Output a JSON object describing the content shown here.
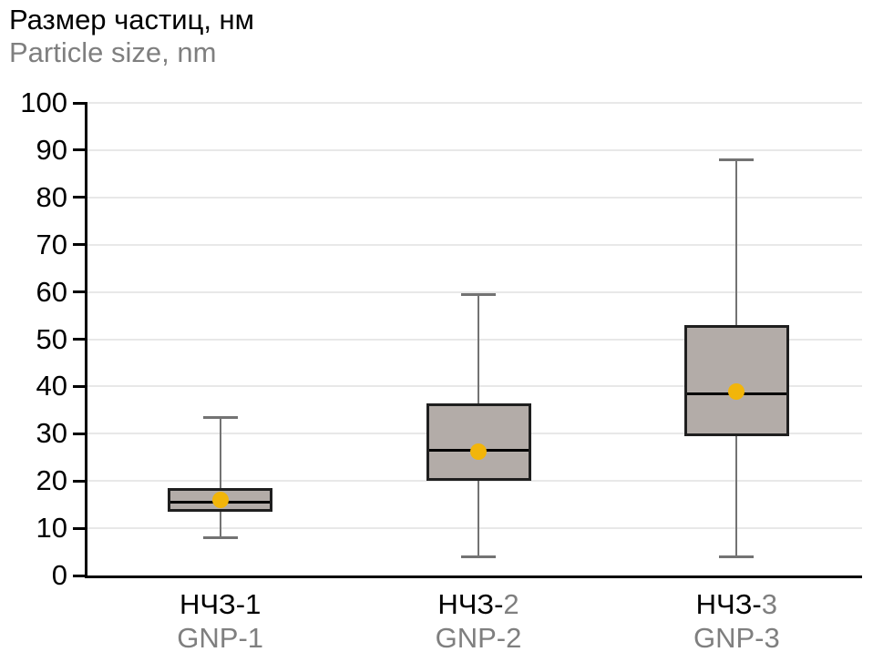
{
  "titles": {
    "ru": "Размер частиц, нм",
    "en": "Particle size, nm"
  },
  "colors": {
    "box_fill": "#b3aca8",
    "box_border": "#1f1f1f",
    "median": "#000000",
    "whisker": "#737373",
    "mean_dot": "#f2b50a",
    "gridline": "#e8e8e8",
    "axis": "#000000",
    "secondary_text": "#7f7f7f",
    "primary_text": "#000000"
  },
  "chart_data": {
    "type": "boxplot",
    "title": "Размер частиц, нм (Particle size, nm)",
    "ylabel": "Размер частиц, нм / Particle size, nm",
    "xlabel": "",
    "ylim": [
      0,
      100
    ],
    "ytick_step": 10,
    "grid": true,
    "legend": "none",
    "categories": [
      {
        "ru_prefix": "НЧЗ-",
        "ru_digit": "1",
        "ru_digit_color": "#000000",
        "en": "GNP-1"
      },
      {
        "ru_prefix": "НЧЗ-",
        "ru_digit": "2",
        "ru_digit_color": "#7f7f7f",
        "en": "GNP-2"
      },
      {
        "ru_prefix": "НЧЗ-",
        "ru_digit": "3",
        "ru_digit_color": "#7f7f7f",
        "en": "GNP-3"
      }
    ],
    "series": [
      {
        "name": "НЧЗ-1 / GNP-1",
        "whisker_low": 8,
        "q1": 13.5,
        "median": 15.5,
        "q3": 18.5,
        "whisker_high": 33.5,
        "mean": 16
      },
      {
        "name": "НЧЗ-2 / GNP-2",
        "whisker_low": 4,
        "q1": 20,
        "median": 26.5,
        "q3": 36.5,
        "whisker_high": 59.5,
        "mean": 26.3
      },
      {
        "name": "НЧЗ-3 / GNP-3",
        "whisker_low": 4,
        "q1": 29.5,
        "median": 38.5,
        "q3": 53,
        "whisker_high": 88,
        "mean": 39
      }
    ]
  }
}
